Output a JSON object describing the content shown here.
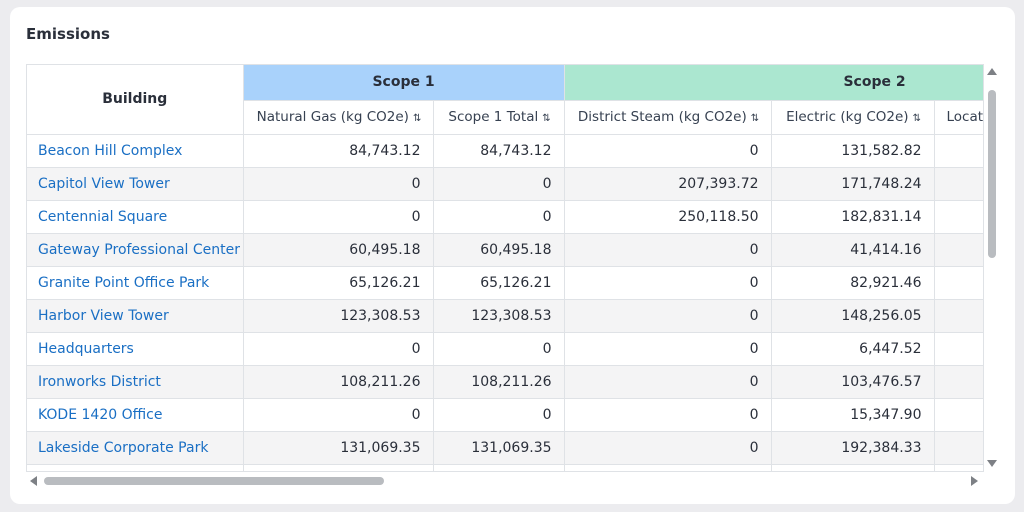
{
  "card": {
    "title": "Emissions"
  },
  "table": {
    "building_header": "Building",
    "groups": [
      {
        "label": "Scope 1",
        "color": "#a9d2fb"
      },
      {
        "label": "Scope 2",
        "color": "#abe7d0"
      }
    ],
    "columns": [
      {
        "label": "Natural Gas (kg CO2e)",
        "sort_icon": "⇅"
      },
      {
        "label": "Scope 1 Total",
        "sort_icon": "⇅"
      },
      {
        "label": "District Steam (kg CO2e)",
        "sort_icon": "⇅"
      },
      {
        "label": "Electric (kg CO2e)",
        "sort_icon": "⇅"
      },
      {
        "label": "Locat",
        "sort_icon": ""
      }
    ],
    "rows": [
      {
        "building": "Beacon Hill Complex",
        "natural_gas": "84,743.12",
        "scope1_total": "84,743.12",
        "district_steam": "0",
        "electric": "131,582.82",
        "location": ""
      },
      {
        "building": "Capitol View Tower",
        "natural_gas": "0",
        "scope1_total": "0",
        "district_steam": "207,393.72",
        "electric": "171,748.24",
        "location": ""
      },
      {
        "building": "Centennial Square",
        "natural_gas": "0",
        "scope1_total": "0",
        "district_steam": "250,118.50",
        "electric": "182,831.14",
        "location": ""
      },
      {
        "building": "Gateway Professional Center",
        "natural_gas": "60,495.18",
        "scope1_total": "60,495.18",
        "district_steam": "0",
        "electric": "41,414.16",
        "location": ""
      },
      {
        "building": "Granite Point Office Park",
        "natural_gas": "65,126.21",
        "scope1_total": "65,126.21",
        "district_steam": "0",
        "electric": "82,921.46",
        "location": ""
      },
      {
        "building": "Harbor View Tower",
        "natural_gas": "123,308.53",
        "scope1_total": "123,308.53",
        "district_steam": "0",
        "electric": "148,256.05",
        "location": ""
      },
      {
        "building": "Headquarters",
        "natural_gas": "0",
        "scope1_total": "0",
        "district_steam": "0",
        "electric": "6,447.52",
        "location": ""
      },
      {
        "building": "Ironworks District",
        "natural_gas": "108,211.26",
        "scope1_total": "108,211.26",
        "district_steam": "0",
        "electric": "103,476.57",
        "location": ""
      },
      {
        "building": "KODE 1420 Office",
        "natural_gas": "0",
        "scope1_total": "0",
        "district_steam": "0",
        "electric": "15,347.90",
        "location": ""
      },
      {
        "building": "Lakeside Corporate Park",
        "natural_gas": "131,069.35",
        "scope1_total": "131,069.35",
        "district_steam": "0",
        "electric": "192,384.33",
        "location": ""
      },
      {
        "building": "",
        "natural_gas": "",
        "scope1_total": "",
        "district_steam": "",
        "electric": "",
        "location": ""
      }
    ]
  },
  "colors": {
    "link": "#1a6fc4",
    "row_alt": "#f4f4f5"
  },
  "icons": {
    "scroll_up": "triangle-up-icon",
    "scroll_down": "triangle-down-icon",
    "scroll_left": "triangle-left-icon",
    "scroll_right": "triangle-right-icon"
  }
}
